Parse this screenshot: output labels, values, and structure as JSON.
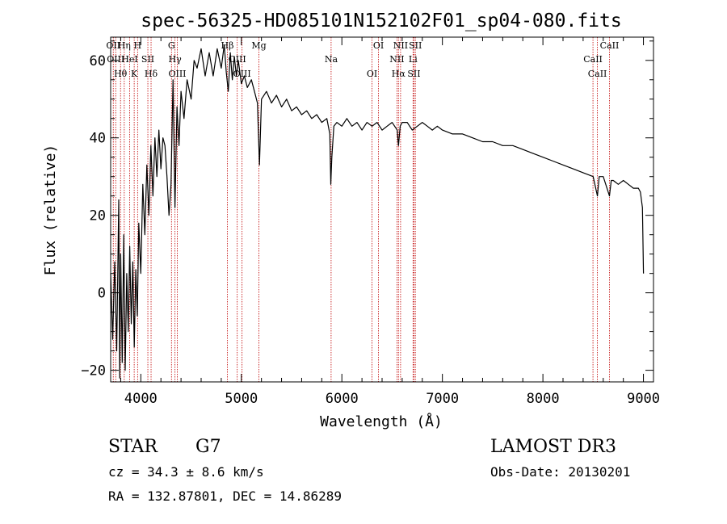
{
  "chart_data": {
    "type": "line",
    "title": "spec-56325-HD085101N152102F01_sp04-080.fits",
    "xlabel": "Wavelength (Å)",
    "ylabel": "Flux (relative)",
    "xlim": [
      3700,
      9100
    ],
    "ylim": [
      -23,
      66
    ],
    "x_ticks": [
      4000,
      5000,
      6000,
      7000,
      8000,
      9000
    ],
    "y_ticks": [
      -20,
      0,
      20,
      40,
      60
    ],
    "grid": false,
    "series": [
      {
        "color": "#000000",
        "points": [
          [
            3700,
            5
          ],
          [
            3720,
            -12
          ],
          [
            3740,
            8
          ],
          [
            3760,
            -15
          ],
          [
            3780,
            24
          ],
          [
            3790,
            -22
          ],
          [
            3800,
            10
          ],
          [
            3815,
            -18
          ],
          [
            3830,
            15
          ],
          [
            3845,
            -20
          ],
          [
            3860,
            5
          ],
          [
            3875,
            -10
          ],
          [
            3890,
            12
          ],
          [
            3905,
            -8
          ],
          [
            3920,
            8
          ],
          [
            3935,
            -14
          ],
          [
            3950,
            6
          ],
          [
            3965,
            -6
          ],
          [
            3980,
            18
          ],
          [
            4000,
            5
          ],
          [
            4020,
            28
          ],
          [
            4040,
            15
          ],
          [
            4060,
            33
          ],
          [
            4080,
            20
          ],
          [
            4100,
            38
          ],
          [
            4120,
            25
          ],
          [
            4140,
            40
          ],
          [
            4160,
            30
          ],
          [
            4180,
            42
          ],
          [
            4200,
            32
          ],
          [
            4220,
            40
          ],
          [
            4240,
            38
          ],
          [
            4260,
            30
          ],
          [
            4280,
            20
          ],
          [
            4300,
            28
          ],
          [
            4320,
            55
          ],
          [
            4340,
            22
          ],
          [
            4360,
            48
          ],
          [
            4380,
            38
          ],
          [
            4400,
            52
          ],
          [
            4430,
            45
          ],
          [
            4460,
            55
          ],
          [
            4500,
            50
          ],
          [
            4530,
            60
          ],
          [
            4560,
            58
          ],
          [
            4600,
            63
          ],
          [
            4640,
            56
          ],
          [
            4680,
            62
          ],
          [
            4720,
            56
          ],
          [
            4760,
            63
          ],
          [
            4800,
            58
          ],
          [
            4830,
            64
          ],
          [
            4850,
            57
          ],
          [
            4870,
            52
          ],
          [
            4890,
            62
          ],
          [
            4910,
            55
          ],
          [
            4930,
            61
          ],
          [
            4950,
            56
          ],
          [
            4970,
            60
          ],
          [
            5000,
            54
          ],
          [
            5030,
            56
          ],
          [
            5060,
            53
          ],
          [
            5100,
            55
          ],
          [
            5130,
            52
          ],
          [
            5160,
            49
          ],
          [
            5180,
            33
          ],
          [
            5200,
            50
          ],
          [
            5250,
            52
          ],
          [
            5300,
            49
          ],
          [
            5350,
            51
          ],
          [
            5400,
            48
          ],
          [
            5450,
            50
          ],
          [
            5500,
            47
          ],
          [
            5550,
            48
          ],
          [
            5600,
            46
          ],
          [
            5650,
            47
          ],
          [
            5700,
            45
          ],
          [
            5750,
            46
          ],
          [
            5800,
            44
          ],
          [
            5850,
            45
          ],
          [
            5880,
            41
          ],
          [
            5890,
            28
          ],
          [
            5900,
            35
          ],
          [
            5920,
            43
          ],
          [
            5950,
            44
          ],
          [
            6000,
            43
          ],
          [
            6050,
            45
          ],
          [
            6100,
            43
          ],
          [
            6150,
            44
          ],
          [
            6200,
            42
          ],
          [
            6250,
            44
          ],
          [
            6300,
            43
          ],
          [
            6350,
            44
          ],
          [
            6400,
            42
          ],
          [
            6450,
            43
          ],
          [
            6500,
            44
          ],
          [
            6550,
            42
          ],
          [
            6563,
            38
          ],
          [
            6580,
            43
          ],
          [
            6600,
            44
          ],
          [
            6650,
            44
          ],
          [
            6700,
            42
          ],
          [
            6750,
            43
          ],
          [
            6800,
            44
          ],
          [
            6850,
            43
          ],
          [
            6900,
            42
          ],
          [
            6950,
            43
          ],
          [
            7000,
            42
          ],
          [
            7100,
            41
          ],
          [
            7200,
            41
          ],
          [
            7300,
            40
          ],
          [
            7400,
            39
          ],
          [
            7500,
            39
          ],
          [
            7600,
            38
          ],
          [
            7700,
            38
          ],
          [
            7800,
            37
          ],
          [
            7900,
            36
          ],
          [
            8000,
            35
          ],
          [
            8100,
            34
          ],
          [
            8200,
            33
          ],
          [
            8300,
            32
          ],
          [
            8400,
            31
          ],
          [
            8500,
            30
          ],
          [
            8542,
            25
          ],
          [
            8560,
            30
          ],
          [
            8600,
            30
          ],
          [
            8662,
            25
          ],
          [
            8680,
            29
          ],
          [
            8700,
            29
          ],
          [
            8750,
            28
          ],
          [
            8800,
            29
          ],
          [
            8850,
            28
          ],
          [
            8900,
            27
          ],
          [
            8950,
            27
          ],
          [
            8970,
            26
          ],
          [
            8990,
            22
          ],
          [
            9000,
            5
          ]
        ]
      }
    ],
    "line_marks": [
      {
        "wavelength": 3726,
        "labels": [
          "OII"
        ]
      },
      {
        "wavelength": 3750,
        "labels": [
          "OIII"
        ]
      },
      {
        "wavelength": 3798,
        "labels": [
          "Hθ"
        ]
      },
      {
        "wavelength": 3835,
        "labels": [
          "Hη"
        ]
      },
      {
        "wavelength": 3889,
        "labels": [
          "HeI"
        ]
      },
      {
        "wavelength": 3934,
        "labels": [
          "K"
        ]
      },
      {
        "wavelength": 3968,
        "labels": [
          "H"
        ]
      },
      {
        "wavelength": 4070,
        "labels": [
          "SII"
        ]
      },
      {
        "wavelength": 4102,
        "labels": [
          "Hδ"
        ]
      },
      {
        "wavelength": 4305,
        "labels": [
          "G"
        ]
      },
      {
        "wavelength": 4340,
        "labels": [
          "Hγ"
        ]
      },
      {
        "wavelength": 4363,
        "labels": [
          "OIII"
        ]
      },
      {
        "wavelength": 4861,
        "labels": [
          "Hβ"
        ]
      },
      {
        "wavelength": 4959,
        "labels": [
          "OIII"
        ]
      },
      {
        "wavelength": 5007,
        "labels": [
          "OIII"
        ]
      },
      {
        "wavelength": 5175,
        "labels": [
          "Mg"
        ]
      },
      {
        "wavelength": 5893,
        "labels": [
          "Na"
        ]
      },
      {
        "wavelength": 6300,
        "labels": [
          "OI"
        ]
      },
      {
        "wavelength": 6364,
        "labels": [
          "OI"
        ]
      },
      {
        "wavelength": 6548,
        "labels": [
          "NII"
        ]
      },
      {
        "wavelength": 6563,
        "labels": [
          "Hα"
        ]
      },
      {
        "wavelength": 6584,
        "labels": [
          "NII"
        ]
      },
      {
        "wavelength": 6708,
        "labels": [
          "Li"
        ]
      },
      {
        "wavelength": 6717,
        "labels": [
          "SII"
        ]
      },
      {
        "wavelength": 6731,
        "labels": [
          "SII"
        ]
      },
      {
        "wavelength": 8498,
        "labels": [
          "CaII"
        ]
      },
      {
        "wavelength": 8542,
        "labels": [
          "CaII"
        ]
      },
      {
        "wavelength": 8662,
        "labels": [
          "CaII"
        ]
      }
    ]
  },
  "info": {
    "object_type": "STAR",
    "subclass": "G7",
    "cz": "cz = 34.3 ± 8.6 km/s",
    "coords": "RA = 132.87801, DEC =  14.86289",
    "survey": "LAMOST DR3",
    "obs_date": "Obs-Date: 20130201"
  },
  "colors": {
    "line_marker": "#c00000",
    "spectrum": "#000000",
    "axes": "#000000"
  }
}
